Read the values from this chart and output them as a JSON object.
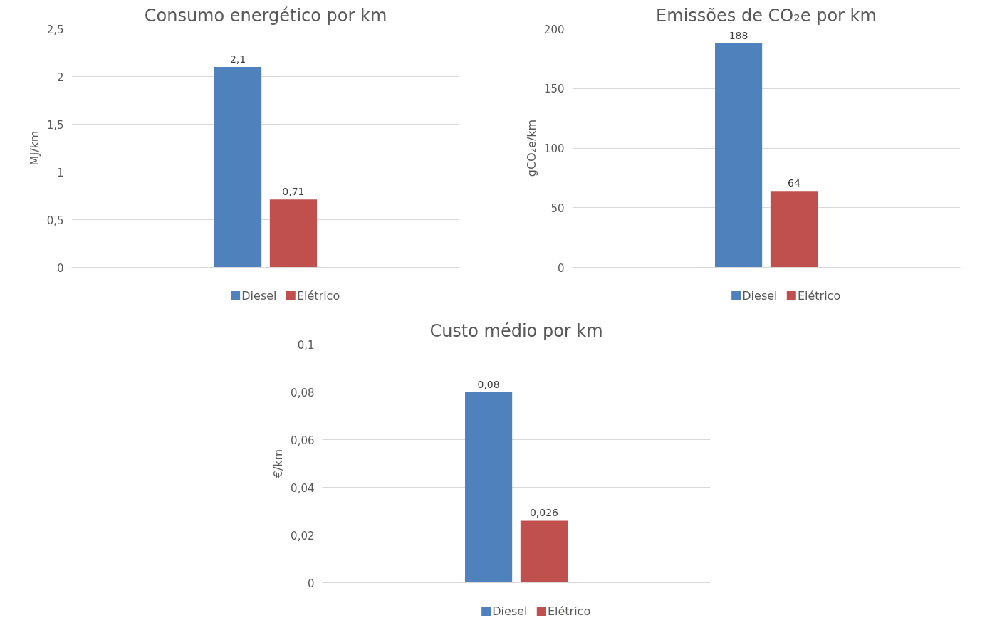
{
  "chart_data": [
    {
      "type": "bar",
      "title": "Consumo energético por km",
      "ylabel": "MJ/km",
      "categories": [
        null
      ],
      "series": [
        {
          "name": "Diesel",
          "color": "#4f81bd",
          "values": [
            2.1
          ],
          "value_labels": [
            "2,1"
          ]
        },
        {
          "name": "Elétrico",
          "color": "#c0504d",
          "values": [
            0.71
          ],
          "value_labels": [
            "0,71"
          ]
        }
      ],
      "ylim": [
        0,
        2.5
      ],
      "yticks": [
        0,
        {
          "value": 0.5,
          "label": "0,5"
        },
        1,
        {
          "value": 1.5,
          "label": "1,5"
        },
        2,
        {
          "value": 2.5,
          "label": "2,5"
        }
      ],
      "grid": "y",
      "legend": "bottom",
      "tick_labels": "y"
    },
    {
      "type": "bar",
      "title": "Emissões de CO₂e por km",
      "ylabel": "gCO₂e/km",
      "categories": [
        null
      ],
      "series": [
        {
          "name": "Diesel",
          "color": "#4f81bd",
          "values": [
            188
          ],
          "value_labels": [
            "188"
          ]
        },
        {
          "name": "Elétrico",
          "color": "#c0504d",
          "values": [
            64
          ],
          "value_labels": [
            "64"
          ]
        }
      ],
      "ylim": [
        0,
        200
      ],
      "yticks": [
        0,
        50,
        100,
        150,
        200
      ],
      "grid": "y",
      "legend": "bottom",
      "tick_labels": "y"
    },
    {
      "type": "bar",
      "title": "Custo médio por km",
      "ylabel": "€/km",
      "categories": [
        null
      ],
      "series": [
        {
          "name": "Diesel",
          "color": "#4f81bd",
          "values": [
            0.08
          ],
          "value_labels": [
            "0,08"
          ]
        },
        {
          "name": "Elétrico",
          "color": "#c0504d",
          "values": [
            0.026
          ],
          "value_labels": [
            "0,026"
          ]
        }
      ],
      "ylim": [
        0,
        0.1
      ],
      "yticks": [
        0,
        {
          "value": 0.02,
          "label": "0,02"
        },
        {
          "value": 0.04,
          "label": "0,04"
        },
        {
          "value": 0.06,
          "label": "0,06"
        },
        {
          "value": 0.08,
          "label": "0,08"
        },
        {
          "value": 0.1,
          "label": "0,1"
        }
      ],
      "grid": "y",
      "legend": "bottom",
      "tick_labels": "y"
    }
  ]
}
